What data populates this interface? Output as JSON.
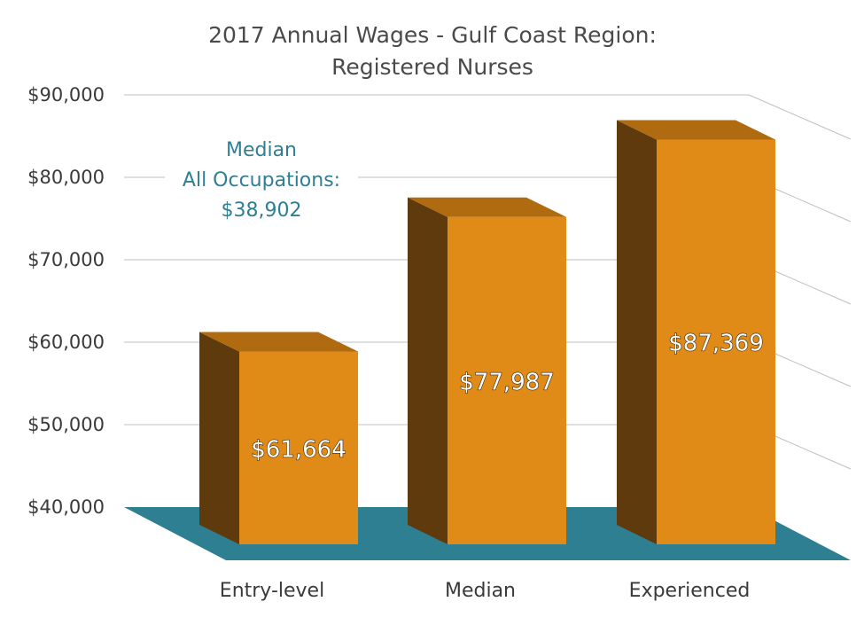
{
  "chart_data": {
    "type": "bar",
    "title": [
      "2017 Annual Wages - Gulf Coast Region:",
      "Registered Nurses"
    ],
    "categories": [
      "Entry-level",
      "Median",
      "Experienced"
    ],
    "values": [
      61664,
      77987,
      87369
    ],
    "value_labels": [
      "$61,664",
      "$77,987",
      "$87,369"
    ],
    "ylim": [
      40000,
      90000
    ],
    "yticks": [
      40000,
      50000,
      60000,
      70000,
      80000,
      90000
    ],
    "ytick_labels": [
      "$40,000",
      "$50,000",
      "$60,000",
      "$70,000",
      "$80,000",
      "$90,000"
    ],
    "grid": true,
    "style": "3d-column",
    "annotation": [
      "Median",
      "All Occupations:",
      "$38,902"
    ],
    "colors": {
      "bar_front": "#e08a17",
      "bar_top": "#b06a10",
      "bar_side": "#5e3a0c",
      "floor": "#2f7f92",
      "annotation": "#2f7f92",
      "grid": "#bfbfbf"
    }
  }
}
